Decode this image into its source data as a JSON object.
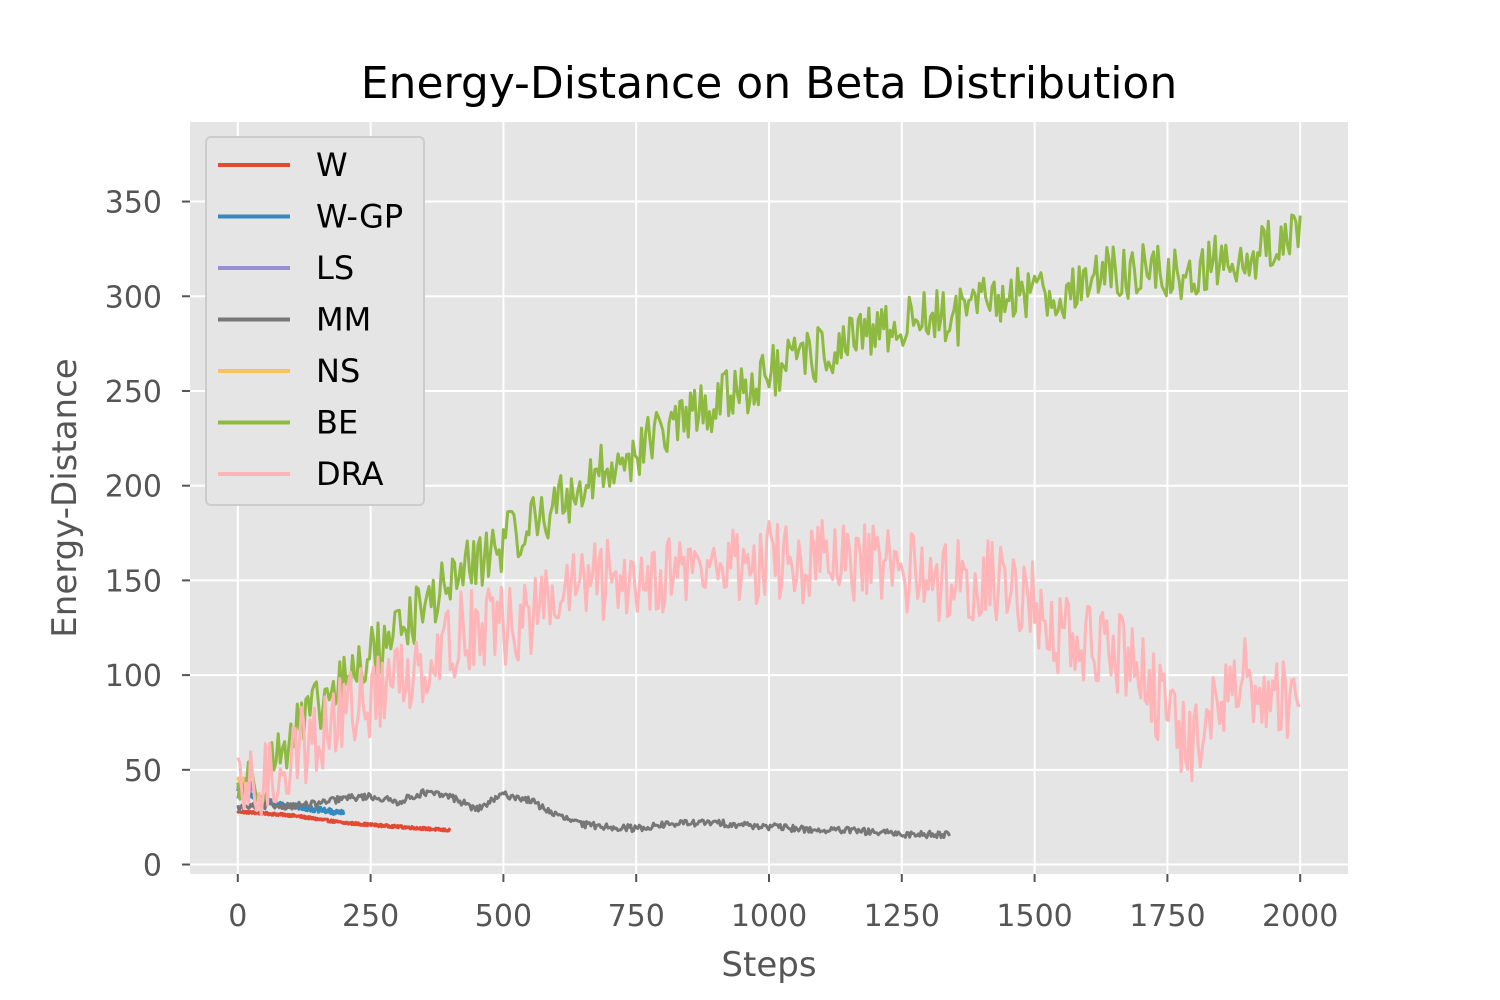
{
  "chart_data": {
    "type": "line",
    "title": "Energy-Distance on Beta Distribution",
    "xlabel": "Steps",
    "ylabel": "Energy-Distance",
    "xlim": [
      -90,
      2090
    ],
    "ylim": [
      -5,
      392
    ],
    "xticks": [
      0,
      250,
      500,
      750,
      1000,
      1250,
      1500,
      1750,
      2000
    ],
    "yticks": [
      0,
      50,
      100,
      150,
      200,
      250,
      300,
      350
    ],
    "grid": true,
    "legend_position": "upper-left",
    "style": "ggplot",
    "series": [
      {
        "name": "W",
        "color": "#E24A33",
        "noise": 0.7,
        "x": [
          0,
          50,
          100,
          150,
          200,
          250,
          300,
          350,
          400
        ],
        "y": [
          28,
          27,
          26,
          24,
          22,
          21,
          20,
          19,
          18
        ]
      },
      {
        "name": "W-GP",
        "color": "#348ABD",
        "noise": 1.5,
        "x": [
          0,
          25,
          50,
          75,
          100,
          125,
          150,
          175,
          200
        ],
        "y": [
          40,
          37,
          34,
          32,
          31,
          30,
          29,
          28,
          27
        ]
      },
      {
        "name": "LS",
        "color": "#988ED5",
        "noise": 2.5,
        "x": [
          0,
          5,
          10,
          15,
          20,
          25,
          30
        ],
        "y": [
          35,
          42,
          40,
          44,
          39,
          42,
          41
        ]
      },
      {
        "name": "MM",
        "color": "#777777",
        "noise": 1.8,
        "x": [
          0,
          50,
          100,
          150,
          200,
          250,
          300,
          350,
          400,
          450,
          500,
          550,
          600,
          650,
          700,
          750,
          800,
          850,
          900,
          950,
          1000,
          1050,
          1100,
          1150,
          1200,
          1250,
          1300,
          1340
        ],
        "y": [
          30,
          31,
          31,
          32,
          35,
          36,
          33,
          38,
          36,
          29,
          37,
          34,
          26,
          21,
          20,
          19,
          21,
          22,
          22,
          21,
          20,
          19,
          18,
          18,
          17,
          16,
          16,
          16
        ]
      },
      {
        "name": "NS",
        "color": "#FBC15E",
        "noise": 2.5,
        "x": [
          0,
          5,
          10,
          15,
          20
        ],
        "y": [
          46,
          40,
          44,
          38,
          40
        ]
      },
      {
        "name": "BE",
        "color": "#8EBA42",
        "noise": 15,
        "x": [
          0,
          50,
          100,
          150,
          200,
          250,
          300,
          350,
          400,
          450,
          500,
          550,
          600,
          650,
          700,
          750,
          800,
          850,
          900,
          950,
          1000,
          1050,
          1100,
          1150,
          1200,
          1250,
          1300,
          1350,
          1400,
          1450,
          1500,
          1550,
          1600,
          1650,
          1700,
          1750,
          1800,
          1850,
          1900,
          1950,
          2000
        ],
        "y": [
          40,
          48,
          68,
          82,
          96,
          110,
          125,
          135,
          150,
          160,
          170,
          180,
          190,
          200,
          210,
          218,
          228,
          236,
          244,
          252,
          258,
          265,
          270,
          275,
          280,
          285,
          290,
          288,
          295,
          300,
          305,
          300,
          308,
          312,
          314,
          310,
          312,
          318,
          322,
          326,
          338
        ]
      },
      {
        "name": "DRA",
        "color": "#FFB5B8",
        "noise": 22,
        "x": [
          0,
          50,
          100,
          150,
          200,
          250,
          300,
          350,
          400,
          450,
          500,
          550,
          600,
          650,
          700,
          750,
          800,
          850,
          900,
          950,
          1000,
          1050,
          1100,
          1150,
          1200,
          1250,
          1300,
          1350,
          1400,
          1450,
          1500,
          1550,
          1600,
          1650,
          1700,
          1750,
          1800,
          1850,
          1900,
          1950,
          2000
        ],
        "y": [
          35,
          42,
          58,
          68,
          80,
          88,
          98,
          108,
          118,
          128,
          125,
          130,
          140,
          148,
          150,
          152,
          155,
          156,
          158,
          158,
          160,
          158,
          160,
          157,
          158,
          155,
          150,
          152,
          150,
          148,
          138,
          120,
          115,
          112,
          108,
          75,
          62,
          85,
          100,
          88,
          90
        ]
      }
    ]
  }
}
